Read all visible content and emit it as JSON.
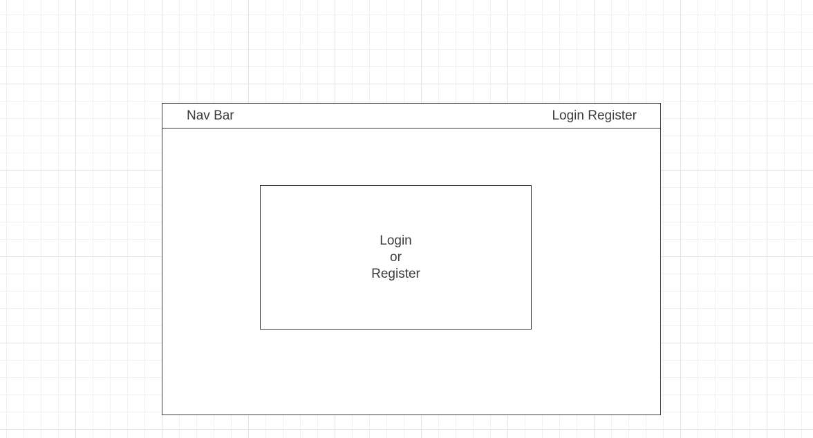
{
  "nav": {
    "title": "Nav Bar",
    "login_label": "Login",
    "register_label": "Register"
  },
  "center_box": {
    "lines": [
      "Login",
      "or",
      "Register"
    ]
  },
  "colors": {
    "stroke": "#3a3a3a",
    "text": "#3b3b3b",
    "grid_major": "#e3e3e3",
    "grid_minor": "#f1f1f1"
  }
}
